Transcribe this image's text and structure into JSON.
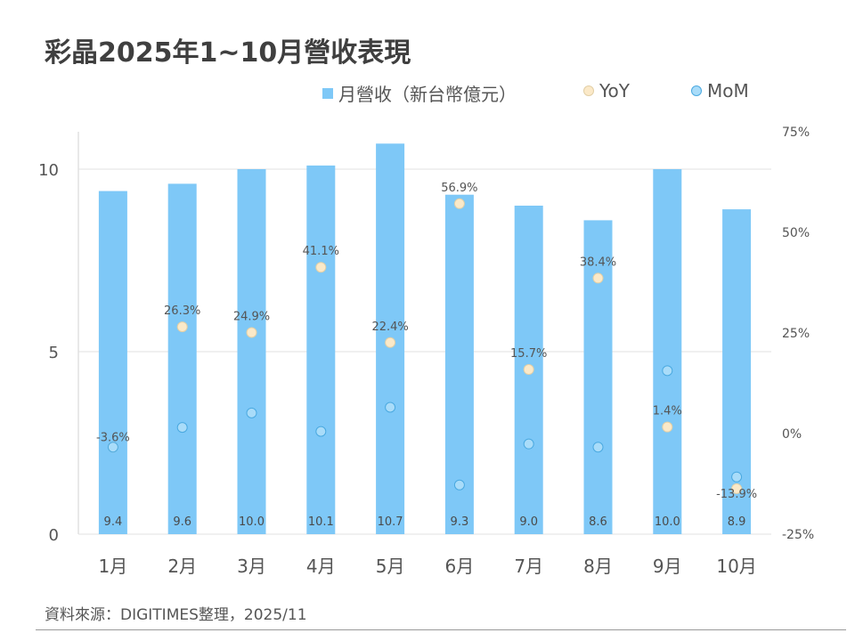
{
  "title": "彩晶2025年1~10月營收表現",
  "source": "資料來源：DIGITIMES整理，2025/11",
  "colors": {
    "bar": "#7ec8f7",
    "yoy": "#fbe9c8",
    "mom": "#a9dcf9",
    "mom_stroke": "#4aa9e0",
    "yoy_stroke": "#e2cfa6"
  },
  "legend": {
    "bar": "月營收（新台幣億元）",
    "yoy": "YoY",
    "mom": "MoM"
  },
  "chart_data": {
    "type": "bar",
    "categories": [
      "1月",
      "2月",
      "3月",
      "4月",
      "5月",
      "6月",
      "7月",
      "8月",
      "9月",
      "10月"
    ],
    "series": [
      {
        "name": "月營收（新台幣億元）",
        "type": "bar",
        "axis": "left",
        "values": [
          9.4,
          9.6,
          10.0,
          10.1,
          10.7,
          9.3,
          9.0,
          8.6,
          10.0,
          8.9
        ]
      },
      {
        "name": "YoY",
        "type": "scatter",
        "axis": "right",
        "values": [
          -3.6,
          26.3,
          24.9,
          41.1,
          22.4,
          56.9,
          15.7,
          38.4,
          1.4,
          -13.9
        ],
        "unit": "%"
      },
      {
        "name": "MoM",
        "type": "scatter",
        "axis": "right",
        "values": [
          -3.6,
          1.3,
          4.9,
          0.3,
          6.3,
          -13.0,
          -2.8,
          -3.6,
          15.4,
          -11.0
        ],
        "unit": "%"
      }
    ],
    "ylim": [
      0,
      10.5
    ],
    "y2lim": [
      -25,
      75
    ],
    "yticks": [
      0,
      5,
      10
    ],
    "y2ticks": [
      "-25%",
      "0%",
      "25%",
      "50%",
      "75%"
    ],
    "grid": true,
    "legend_position": "top"
  }
}
